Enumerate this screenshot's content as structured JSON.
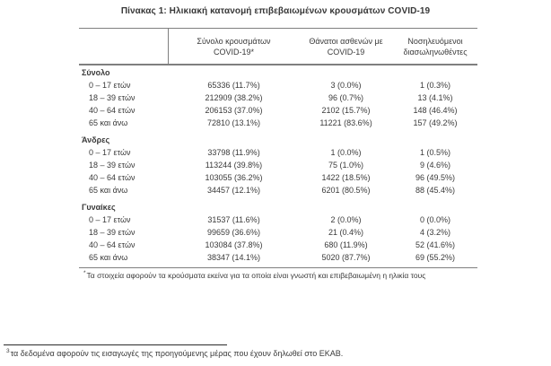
{
  "page": {
    "title": "Πίνακας 1: Ηλικιακή κατανομή επιβεβαιωμένων κρουσμάτων COVID-19"
  },
  "table": {
    "columns": [
      {
        "line1": "Σύνολο κρουσμάτων",
        "line2": "COVID-19*"
      },
      {
        "line1": "Θάνατοι ασθενών με",
        "line2": "COVID-19"
      },
      {
        "line1": "Νοσηλευόμενοι",
        "line2": "διασωληνωθέντες"
      }
    ],
    "groups": [
      {
        "label": "Σύνολο",
        "rows": [
          {
            "label": "0 – 17 ετών",
            "cells": [
              "65336 (11.7%)",
              "3 (0.0%)",
              "1 (0.3%)"
            ]
          },
          {
            "label": "18 – 39 ετών",
            "cells": [
              "212909 (38.2%)",
              "96 (0.7%)",
              "13 (4.1%)"
            ]
          },
          {
            "label": "40 – 64 ετών",
            "cells": [
              "206153 (37.0%)",
              "2102 (15.7%)",
              "148 (46.4%)"
            ]
          },
          {
            "label": "65 και άνω",
            "cells": [
              "72810 (13.1%)",
              "11221 (83.6%)",
              "157 (49.2%)"
            ]
          }
        ]
      },
      {
        "label": "Άνδρες",
        "rows": [
          {
            "label": "0 – 17 ετών",
            "cells": [
              "33798 (11.9%)",
              "1 (0.0%)",
              "1 (0.5%)"
            ]
          },
          {
            "label": "18 – 39 ετών",
            "cells": [
              "113244 (39.8%)",
              "75 (1.0%)",
              "9 (4.6%)"
            ]
          },
          {
            "label": "40 – 64 ετών",
            "cells": [
              "103055 (36.2%)",
              "1422 (18.5%)",
              "96 (49.5%)"
            ]
          },
          {
            "label": "65 και άνω",
            "cells": [
              "34457 (12.1%)",
              "6201 (80.5%)",
              "88 (45.4%)"
            ]
          }
        ]
      },
      {
        "label": "Γυναίκες",
        "rows": [
          {
            "label": "0 – 17 ετών",
            "cells": [
              "31537 (11.6%)",
              "2 (0.0%)",
              "0 (0.0%)"
            ]
          },
          {
            "label": "18 – 39 ετών",
            "cells": [
              "99659 (36.6%)",
              "21 (0.4%)",
              "4 (3.2%)"
            ]
          },
          {
            "label": "40 – 64 ετών",
            "cells": [
              "103084 (37.8%)",
              "680 (11.9%)",
              "52 (41.6%)"
            ]
          },
          {
            "label": "65 και άνω",
            "cells": [
              "38347 (14.1%)",
              "5020 (87.7%)",
              "69 (55.2%)"
            ]
          }
        ]
      }
    ],
    "footnote_marker": "*",
    "footnote": "Τα στοιχεία αφορούν τα κρούσματα εκείνα για τα οποία είναι γνωστή και επιβεβαιωμένη η ηλικία τους"
  },
  "page_footnote": {
    "marker": "3",
    "text": "τα δεδομένα αφορούν τις εισαγωγές της προηγούμενης μέρας που έχουν δηλωθεί στο ΕΚΑΒ."
  },
  "colors": {
    "text": "#3a3a3a",
    "table_border": "#7f7f7f",
    "footnote_rule": "#2b2b2b"
  }
}
